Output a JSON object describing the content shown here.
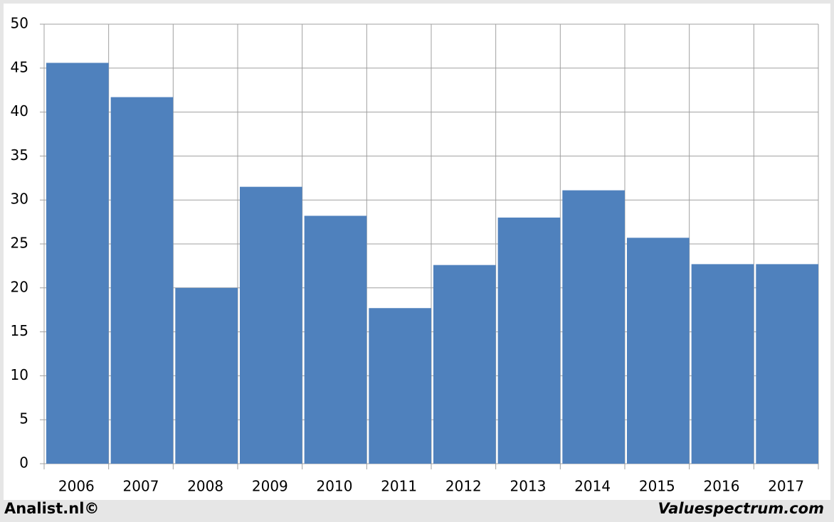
{
  "chart_data": {
    "type": "bar",
    "categories": [
      "2006",
      "2007",
      "2008",
      "2009",
      "2010",
      "2011",
      "2012",
      "2013",
      "2014",
      "2015",
      "2016",
      "2017"
    ],
    "values": [
      45.6,
      41.7,
      20.0,
      31.5,
      28.2,
      17.7,
      22.6,
      28.0,
      31.1,
      25.7,
      22.7,
      22.7
    ],
    "color": "#4f81bd",
    "ylim": [
      0,
      50
    ],
    "yticks": [
      0,
      5,
      10,
      15,
      20,
      25,
      30,
      35,
      40,
      45,
      50
    ],
    "grid": true
  },
  "footer": {
    "left": "Analist.nl©",
    "right": "Valuespectrum.com"
  }
}
